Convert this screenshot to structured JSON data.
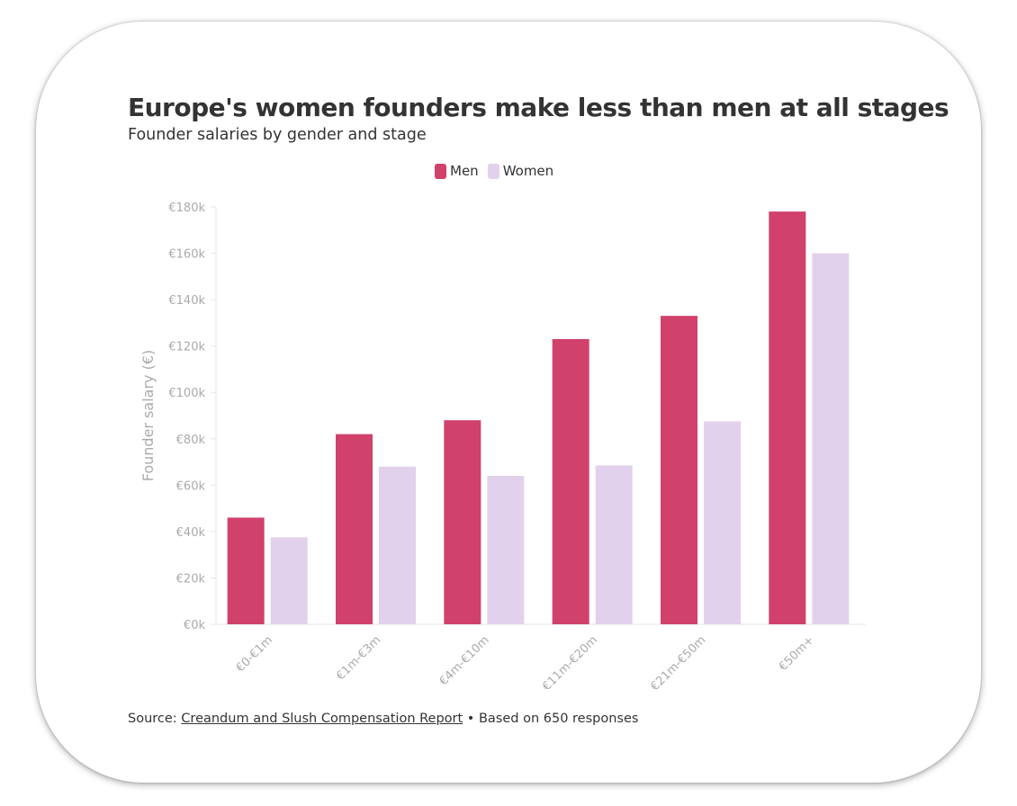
{
  "chart_data": {
    "type": "bar",
    "title": "Europe's women founders make less than men at all stages",
    "subtitle": "Founder salaries by gender and stage",
    "ylabel": "Founder salary (€)",
    "xlabel": "",
    "categories": [
      "€0-€1m",
      "€1m-€3m",
      "€4m-€10m",
      "€11m-€20m",
      "€21m-€50m",
      "€50m+"
    ],
    "series": [
      {
        "name": "Men",
        "color": "#d0416c",
        "values": [
          46000,
          82000,
          88000,
          123000,
          133000,
          178000
        ]
      },
      {
        "name": "Women",
        "color": "#e2d1ec",
        "values": [
          37500,
          68000,
          64000,
          68500,
          87500,
          160000
        ]
      }
    ],
    "ylim": [
      0,
      180000
    ],
    "yticks": [
      "€0k",
      "€20k",
      "€40k",
      "€60k",
      "€80k",
      "€100k",
      "€120k",
      "€140k",
      "€160k",
      "€180k"
    ],
    "legend": "top-center",
    "grid": false
  },
  "footer": {
    "source_prefix": "Source: ",
    "source_link": "Creandum and Slush Compensation Report",
    "note": " • Based on 650 responses"
  }
}
